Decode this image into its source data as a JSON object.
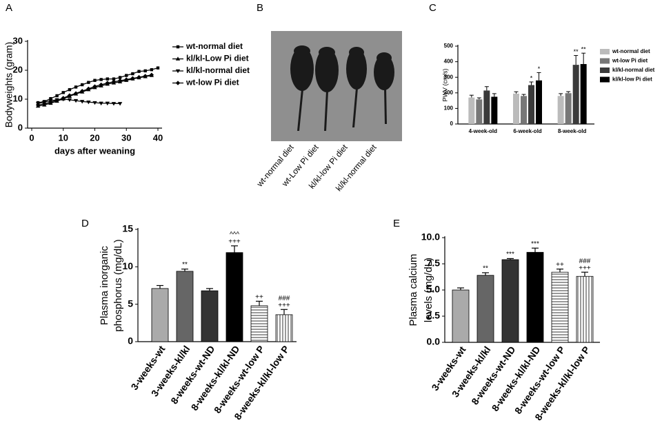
{
  "chart_data": [
    {
      "type": "line",
      "panel": "A",
      "ylabel": [
        "Bodyweights (gram)"
      ],
      "xlabel": "days after weaning",
      "x": [
        2,
        4,
        6,
        8,
        10,
        12,
        14,
        16,
        18,
        20,
        22,
        24,
        26,
        28,
        30,
        32,
        34,
        36,
        38,
        40
      ],
      "xlim": [
        0,
        40
      ],
      "xticks": [
        0,
        10,
        20,
        30,
        40
      ],
      "ylim": [
        0,
        30
      ],
      "yticks": [
        0,
        10,
        20,
        30
      ],
      "series": [
        {
          "name": "wt-normal diet",
          "color": "#000000",
          "marker": "square",
          "values": [
            8.8,
            9.2,
            10.2,
            11.2,
            12.3,
            13.3,
            14.2,
            15.0,
            15.8,
            16.5,
            16.8,
            17.0,
            17.0,
            17.5,
            18.2,
            18.8,
            19.6,
            19.8,
            20.2,
            20.8
          ]
        },
        {
          "name": "kl/kl-Low Pi diet",
          "color": "#000000",
          "marker": "triangle-up",
          "values": [
            7.6,
            8.0,
            8.6,
            9.3,
            10.1,
            11.0,
            11.8,
            12.5,
            13.3,
            14.0,
            14.6,
            15.2,
            15.6,
            16.0,
            16.5,
            17.0,
            17.4,
            17.8,
            18.2,
            null
          ]
        },
        {
          "name": "kl/kl-normal diet",
          "color": "#000000",
          "marker": "triangle-down",
          "values": [
            8.5,
            9.0,
            9.5,
            9.8,
            10.0,
            9.8,
            9.5,
            9.2,
            9.0,
            8.8,
            8.6,
            8.6,
            8.5,
            8.5,
            null,
            null,
            null,
            null,
            null,
            null
          ]
        },
        {
          "name": "wt-low Pi diet",
          "color": "#000000",
          "marker": "diamond",
          "values": [
            8.0,
            8.4,
            9.0,
            9.6,
            10.4,
            11.3,
            12.0,
            12.8,
            13.6,
            14.4,
            15.0,
            15.6,
            16.0,
            16.4,
            16.8,
            17.2,
            17.6,
            18.0,
            18.4,
            null
          ]
        }
      ]
    },
    {
      "type": "image",
      "panel": "B",
      "categories": [
        "wt-normal diet",
        "wt-Low Pi diet",
        "kl/kl-low Pi diet",
        "kl/kl-normal diet"
      ]
    },
    {
      "type": "grouped-bar",
      "panel": "C",
      "ylabel": [
        "PWV (cm/s)"
      ],
      "categories": [
        "4-week-old",
        "6-week-old",
        "8-week-old"
      ],
      "ylim": [
        0,
        500
      ],
      "yticks": [
        0,
        100,
        200,
        300,
        400,
        500
      ],
      "series": [
        {
          "name": "wt-normal diet",
          "color": "#bbbbbb",
          "values": [
            170,
            195,
            180
          ],
          "errors": [
            15,
            12,
            15
          ],
          "annotations": [
            null,
            null,
            null
          ]
        },
        {
          "name": "wt-low Pi diet",
          "color": "#777777",
          "values": [
            158,
            180,
            198
          ],
          "errors": [
            10,
            10,
            10
          ],
          "annotations": [
            null,
            null,
            null
          ]
        },
        {
          "name": "kl/kl-normal diet",
          "color": "#3a3a3a",
          "values": [
            215,
            250,
            380
          ],
          "errors": [
            25,
            20,
            60
          ],
          "annotations": [
            null,
            "*",
            "**"
          ]
        },
        {
          "name": "kl/kl-low Pi diet",
          "color": "#000000",
          "values": [
            175,
            280,
            385
          ],
          "errors": [
            20,
            50,
            70
          ],
          "annotations": [
            null,
            "*",
            "**"
          ]
        }
      ]
    },
    {
      "type": "bar",
      "panel": "D",
      "ylabel": [
        "Plasma inorganic",
        "phosphorus (mg/dL)"
      ],
      "categories": [
        "3-weeks-wt",
        "3-weeks-kl/kl",
        "8-weeks-wt-ND",
        "8-weeks-kl/kl-ND",
        "8-weeks-wt-low P",
        "8-weeks-kl/kl-low P"
      ],
      "values": [
        7.1,
        9.4,
        6.8,
        11.9,
        4.8,
        3.6
      ],
      "errors": [
        0.4,
        0.3,
        0.3,
        0.9,
        0.6,
        0.7
      ],
      "colors": [
        "#aaaaaa",
        "#666666",
        "#333333",
        "#000000",
        "#ffffff",
        "#ffffff"
      ],
      "hatch": [
        null,
        null,
        null,
        null,
        "horizontal",
        "vertical"
      ],
      "annotations": [
        null,
        [
          "**"
        ],
        null,
        [
          "^^^",
          "+++"
        ],
        [
          "++"
        ],
        [
          "###",
          "+++"
        ]
      ],
      "ylim": [
        0,
        15
      ],
      "yticks": [
        0,
        5,
        10,
        15
      ]
    },
    {
      "type": "bar",
      "panel": "E",
      "ylabel": [
        "Plasma calcium",
        "levels (mg/dL)"
      ],
      "categories": [
        "3-weeks-wt",
        "3-weeks-kl/kl",
        "8-weeks-wt-ND",
        "8-weeks-kl/kl-ND",
        "8-weeks-wt-low P",
        "8-weeks-kl/kl-low P"
      ],
      "values": [
        5.0,
        6.4,
        7.9,
        8.6,
        6.7,
        6.3
      ],
      "errors": [
        0.2,
        0.25,
        0.1,
        0.4,
        0.3,
        0.4
      ],
      "colors": [
        "#aaaaaa",
        "#666666",
        "#333333",
        "#000000",
        "#ffffff",
        "#ffffff"
      ],
      "hatch": [
        null,
        null,
        null,
        null,
        "horizontal",
        "vertical"
      ],
      "annotations": [
        null,
        [
          "**"
        ],
        [
          "***"
        ],
        [
          "***"
        ],
        [
          "++"
        ],
        [
          "###",
          "+++"
        ]
      ],
      "ylim": [
        0,
        10
      ],
      "yticks": [
        {
          "value": 0,
          "label": "0.0"
        },
        2.5,
        {
          "value": 5,
          "label": "5.0"
        },
        7.5,
        {
          "value": 10,
          "label": "10.0"
        }
      ]
    }
  ]
}
